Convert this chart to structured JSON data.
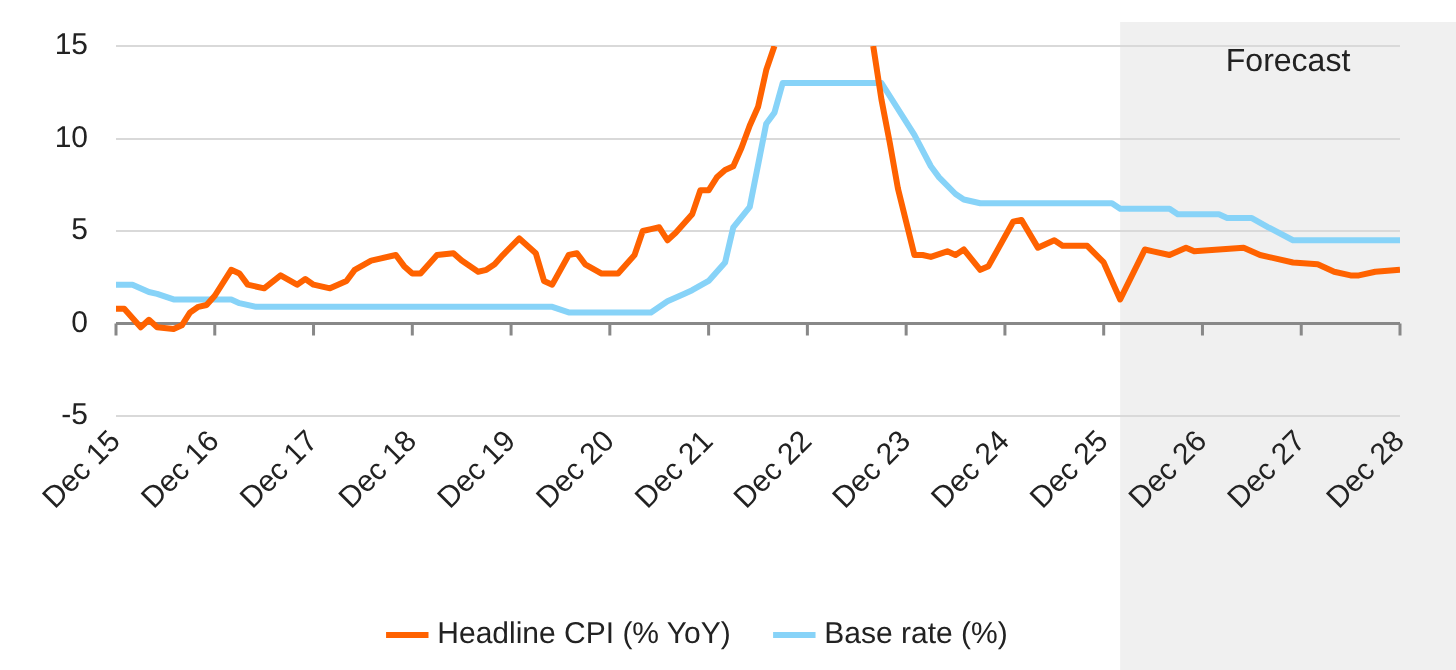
{
  "chart_data": {
    "type": "line",
    "series": [
      {
        "name": "Headline CPI (% YoY)",
        "color": "#ff6200",
        "x": [
          "2015-12",
          "2016-01",
          "2016-03",
          "2016-04",
          "2016-05",
          "2016-07",
          "2016-08",
          "2016-09",
          "2016-10",
          "2016-11",
          "2016-12",
          "2017-02",
          "2017-03",
          "2017-04",
          "2017-06",
          "2017-08",
          "2017-10",
          "2017-11",
          "2017-12",
          "2018-02",
          "2018-04",
          "2018-05",
          "2018-07",
          "2018-10",
          "2018-11",
          "2018-12",
          "2019-01",
          "2019-03",
          "2019-05",
          "2019-06",
          "2019-08",
          "2019-09",
          "2019-10",
          "2019-11",
          "2020-01",
          "2020-03",
          "2020-04",
          "2020-05",
          "2020-07",
          "2020-08",
          "2020-09",
          "2020-11",
          "2021-01",
          "2021-03",
          "2021-04",
          "2021-05",
          "2021-06",
          "2021-07",
          "2021-08",
          "2021-10",
          "2021-11",
          "2021-12",
          "2022-01",
          "2022-02",
          "2022-03",
          "2022-04",
          "2022-05",
          "2022-06",
          "2022-07",
          "2022-08",
          "2022-09",
          "2023-07",
          "2023-08",
          "2023-09",
          "2023-10",
          "2023-11",
          "2023-12",
          "2024-01",
          "2024-02",
          "2024-03",
          "2024-05",
          "2024-06",
          "2024-07",
          "2024-09",
          "2024-10",
          "2024-11",
          "2025-01",
          "2025-02",
          "2025-04",
          "2025-06",
          "2025-07",
          "2025-10",
          "2025-12",
          "2026-02",
          "2026-05",
          "2026-06",
          "2026-08",
          "2026-10",
          "2026-11",
          "2027-02",
          "2027-05",
          "2027-07",
          "2027-11",
          "2028-02",
          "2028-04",
          "2028-06",
          "2028-07",
          "2028-09",
          "2028-12"
        ],
        "values": [
          0.8,
          0.8,
          -0.2,
          0.2,
          -0.2,
          -0.3,
          -0.1,
          0.6,
          0.9,
          1.0,
          1.5,
          2.9,
          2.7,
          2.1,
          1.9,
          2.6,
          2.1,
          2.4,
          2.1,
          1.9,
          2.3,
          2.9,
          3.4,
          3.7,
          3.1,
          2.7,
          2.7,
          3.7,
          3.8,
          3.4,
          2.8,
          2.9,
          3.2,
          3.7,
          4.6,
          3.8,
          2.3,
          2.1,
          3.7,
          3.8,
          3.2,
          2.7,
          2.7,
          3.7,
          5.0,
          5.1,
          5.2,
          4.5,
          4.9,
          5.9,
          7.2,
          7.2,
          7.9,
          8.3,
          8.5,
          9.5,
          10.7,
          11.7,
          13.7,
          15,
          null,
          null,
          15,
          12.1,
          9.8,
          7.3,
          5.5,
          3.7,
          3.7,
          3.6,
          3.9,
          3.7,
          4.0,
          2.9,
          3.1,
          3.9,
          5.5,
          5.6,
          4.1,
          4.5,
          4.2,
          4.2,
          3.3,
          1.3,
          4.0,
          3.9,
          3.7,
          4.1,
          3.9,
          4.0,
          4.1,
          3.7,
          3.3,
          3.2,
          2.8,
          2.6,
          2.6,
          2.8,
          2.9
        ]
      },
      {
        "name": "Base rate (%)",
        "color": "#87d3f8",
        "x": [
          "2015-12",
          "2016-02",
          "2016-04",
          "2016-05",
          "2016-07",
          "2017-02",
          "2017-03",
          "2017-05",
          "2020-05",
          "2020-07",
          "2021-05",
          "2021-07",
          "2021-09",
          "2021-10",
          "2021-12",
          "2022-02",
          "2022-03",
          "2022-05",
          "2022-07",
          "2022-08",
          "2022-09",
          "2023-09",
          "2024-01",
          "2024-03",
          "2024-04",
          "2024-06",
          "2024-07",
          "2024-09",
          "2026-01",
          "2026-02",
          "2026-08",
          "2026-09",
          "2027-02",
          "2027-03",
          "2027-06",
          "2027-08",
          "2027-11",
          "2028-12"
        ],
        "values": [
          2.1,
          2.1,
          1.7,
          1.6,
          1.3,
          1.3,
          1.1,
          0.9,
          0.9,
          0.6,
          0.6,
          1.2,
          1.6,
          1.8,
          2.3,
          3.3,
          5.2,
          6.3,
          10.8,
          11.4,
          13,
          13,
          10.2,
          8.5,
          7.9,
          7.0,
          6.7,
          6.5,
          6.5,
          6.2,
          6.2,
          5.9,
          5.9,
          5.7,
          5.7,
          5.2,
          4.5,
          4.5
        ]
      }
    ],
    "xlim": [
      "2015-12",
      "2028-12"
    ],
    "xticks": [
      {
        "value": "2015-12",
        "label": "Dec 15"
      },
      {
        "value": "2016-12",
        "label": "Dec 16"
      },
      {
        "value": "2017-12",
        "label": "Dec 17"
      },
      {
        "value": "2018-12",
        "label": "Dec 18"
      },
      {
        "value": "2019-12",
        "label": "Dec 19"
      },
      {
        "value": "2020-12",
        "label": "Dec 20"
      },
      {
        "value": "2021-12",
        "label": "Dec 21"
      },
      {
        "value": "2022-12",
        "label": "Dec 22"
      },
      {
        "value": "2023-12",
        "label": "Dec 23"
      },
      {
        "value": "2024-12",
        "label": "Dec 24"
      },
      {
        "value": "2025-12",
        "label": "Dec 25"
      },
      {
        "value": "2026-12",
        "label": "Dec 26"
      },
      {
        "value": "2027-12",
        "label": "Dec 27"
      },
      {
        "value": "2028-12",
        "label": "Dec 28"
      }
    ],
    "ylim": [
      -5,
      15
    ],
    "yticks": [
      -5,
      0,
      5,
      10,
      15
    ],
    "bands": [
      {
        "axis": "x",
        "from": "2026-02",
        "to": "2028-12",
        "label": "Forecast",
        "color": "#f0f0f0"
      }
    ],
    "grid": "y",
    "legend": "bottom",
    "marker": "none",
    "line_style": "solid"
  }
}
